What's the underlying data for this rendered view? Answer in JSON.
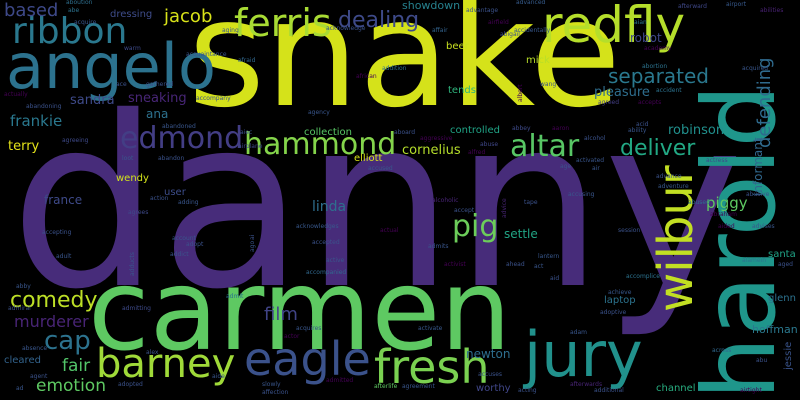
{
  "words": {
    "snake": {
      "text": "snake",
      "color": "#d5e21a"
    },
    "danny": {
      "text": "danny",
      "color": "#472c7a"
    },
    "carmen": {
      "text": "carmen",
      "color": "#5ec962"
    },
    "harold": {
      "text": "harold",
      "color": "#1f968b"
    },
    "angelo": {
      "text": "angelo",
      "color": "#2c728e"
    },
    "jury": {
      "text": "jury",
      "color": "#21918c"
    },
    "eagle": {
      "text": "eagle",
      "color": "#3b528b"
    },
    "fresh": {
      "text": "fresh",
      "color": "#7ad151"
    },
    "barney": {
      "text": "barney",
      "color": "#a0da39"
    },
    "wilbur": {
      "text": "wilbur",
      "color": "#c2df23"
    },
    "redfly": {
      "text": "redfly",
      "color": "#b5de2b"
    },
    "ferris": {
      "text": "ferris",
      "color": "#a8db34"
    },
    "ribbon": {
      "text": "ribbon",
      "color": "#2a788e"
    },
    "edmond": {
      "text": "edmond",
      "color": "#433e85"
    },
    "hammond": {
      "text": "hammond",
      "color": "#84d44b"
    },
    "altar": {
      "text": "altar",
      "color": "#58c765"
    },
    "pig": {
      "text": "pig",
      "color": "#6ccd5a"
    },
    "dealing": {
      "text": "dealing",
      "color": "#3e4a89"
    },
    "comedy": {
      "text": "comedy",
      "color": "#bddf26"
    },
    "cap": {
      "text": "cap",
      "color": "#2c728e"
    },
    "deliver": {
      "text": "deliver",
      "color": "#22a884"
    },
    "separated": {
      "text": "separated",
      "color": "#2a788e"
    },
    "defending": {
      "text": "defending",
      "color": "#2f6b8e"
    },
    "murderer": {
      "text": "murderer",
      "color": "#482475"
    },
    "film": {
      "text": "film",
      "color": "#414487"
    },
    "based": {
      "text": "based",
      "color": "#3e4989"
    },
    "jacob": {
      "text": "jacob",
      "color": "#d8e219"
    },
    "emotion": {
      "text": "emotion",
      "color": "#5ec962"
    },
    "fair": {
      "text": "fair",
      "color": "#52c569"
    },
    "frankie": {
      "text": "frankie",
      "color": "#2a788e"
    },
    "sandra": {
      "text": "sandra",
      "color": "#3e4a89"
    },
    "sneaking": {
      "text": "sneaking",
      "color": "#482677"
    },
    "pleasure": {
      "text": "pleasure",
      "color": "#2e6e8e"
    },
    "robinson": {
      "text": "robinson",
      "color": "#21908d"
    },
    "piggy": {
      "text": "piggy",
      "color": "#5ec962"
    },
    "cornelius": {
      "text": "cornelius",
      "color": "#b5de2b"
    },
    "linda": {
      "text": "linda",
      "color": "#2e6f8e"
    },
    "informant": {
      "text": "informant",
      "color": "#31688e"
    },
    "france": {
      "text": "france",
      "color": "#3e4a89"
    },
    "terry": {
      "text": "terry",
      "color": "#e5e419"
    },
    "newton": {
      "text": "newton",
      "color": "#2e6e8e"
    },
    "hoffman": {
      "text": "hoffman",
      "color": "#2a788e"
    },
    "robot": {
      "text": "robot",
      "color": "#3f4788"
    },
    "ana": {
      "text": "ana",
      "color": "#2d718e"
    },
    "settle": {
      "text": "settle",
      "color": "#21a585"
    },
    "showdown": {
      "text": "showdown",
      "color": "#26818e"
    },
    "collection": {
      "text": "collection",
      "color": "#58c765"
    },
    "controlled": {
      "text": "controlled",
      "color": "#20a486"
    },
    "mick": {
      "text": "mick",
      "color": "#b8de29"
    },
    "beer": {
      "text": "beer",
      "color": "#c8e020"
    },
    "tends": {
      "text": "tends",
      "color": "#2fb47c"
    },
    "wendy": {
      "text": "wendy",
      "color": "#d2e21b"
    },
    "elliott": {
      "text": "elliott",
      "color": "#d8e219"
    },
    "dressing": {
      "text": "dressing",
      "color": "#3e4c8a"
    },
    "santa": {
      "text": "santa",
      "color": "#20a386"
    },
    "glenn": {
      "text": "glenn",
      "color": "#2c728e"
    },
    "channel": {
      "text": "channel",
      "color": "#28ae80"
    },
    "jessie": {
      "text": "jessie",
      "color": "#3a548c"
    },
    "worthy": {
      "text": "worthy",
      "color": "#404688"
    },
    "cleared": {
      "text": "cleared",
      "color": "#33638d"
    },
    "laptop": {
      "text": "laptop",
      "color": "#2c738e"
    },
    "user": {
      "text": "user",
      "color": "#3d4d8a"
    },
    "aboution": {
      "text": "aboution",
      "color": "#2e6f8e"
    },
    "abe": {
      "text": "abe",
      "color": "#2c728e"
    },
    "advanced": {
      "text": "advanced",
      "color": "#365c8d"
    },
    "afterward": {
      "text": "afterward",
      "color": "#3f4889"
    },
    "airport": {
      "text": "airport",
      "color": "#37598c"
    },
    "abilities": {
      "text": "abilities",
      "color": "#482173"
    },
    "acknowledge": {
      "text": "acknowledge",
      "color": "#3b528b"
    },
    "accidentally": {
      "text": "accidentally",
      "color": "#38588c"
    },
    "abigail": {
      "text": "abigail",
      "color": "#3d4e8a"
    },
    "airfield": {
      "text": "airfield",
      "color": "#440154"
    },
    "aian": {
      "text": "aian",
      "color": "#2b758e"
    },
    "affair": {
      "text": "affair",
      "color": "#33638d"
    },
    "aging": {
      "text": "aging",
      "color": "#39568c"
    },
    "afraid": {
      "text": "afraid",
      "color": "#31688e"
    },
    "addition": {
      "text": "addition",
      "color": "#2d708e"
    },
    "african": {
      "text": "african",
      "color": "#440154"
    },
    "abortion": {
      "text": "abortion",
      "color": "#2c738e"
    },
    "acquired": {
      "text": "acquired",
      "color": "#39568c"
    },
    "accident": {
      "text": "accident",
      "color": "#2c728e"
    },
    "agreed": {
      "text": "agreed",
      "color": "#433e85"
    },
    "accepts": {
      "text": "accepts",
      "color": "#440154"
    },
    "acid": {
      "text": "acid",
      "color": "#3b528b"
    },
    "ability": {
      "text": "ability",
      "color": "#39568c"
    },
    "abuse": {
      "text": "abuse",
      "color": "#3f4788"
    },
    "actress": {
      "text": "actress",
      "color": "#3e4a89"
    },
    "advance": {
      "text": "advance",
      "color": "#3b528b"
    },
    "adventure": {
      "text": "adventure",
      "color": "#38588c"
    },
    "abusive": {
      "text": "abusive",
      "color": "#3b528b"
    },
    "abused": {
      "text": "abused",
      "color": "#2e6d8e"
    },
    "advises": {
      "text": "advises",
      "color": "#39568c"
    },
    "abraham": {
      "text": "abraham",
      "color": "#440154"
    },
    "aided": {
      "text": "aided",
      "color": "#440154"
    },
    "alamein": {
      "text": "alamein",
      "color": "#2c728e"
    },
    "aged": {
      "text": "aged",
      "color": "#3b528b"
    },
    "achieve": {
      "text": "achieve",
      "color": "#38588c"
    },
    "accomplice": {
      "text": "accomplice",
      "color": "#2c728e"
    },
    "adoptive": {
      "text": "adoptive",
      "color": "#3b528b"
    },
    "across": {
      "text": "across",
      "color": "#31688e"
    },
    "abu": {
      "text": "abu",
      "color": "#3b528b"
    },
    "airtight": {
      "text": "airtight",
      "color": "#440154"
    },
    "additional": {
      "text": "additional",
      "color": "#3b528b"
    },
    "afterwards": {
      "text": "afterwards",
      "color": "#482475"
    },
    "acting": {
      "text": "acting",
      "color": "#3b528b"
    },
    "accuses": {
      "text": "accuses",
      "color": "#3b528b"
    },
    "agreement": {
      "text": "agreement",
      "color": "#39568c"
    },
    "accepting": {
      "text": "accepting",
      "color": "#3b528b"
    },
    "agrees": {
      "text": "agrees",
      "color": "#3e4a89"
    },
    "adult": {
      "text": "adult",
      "color": "#39568c"
    },
    "abby": {
      "text": "abby",
      "color": "#39568c"
    },
    "admiral": {
      "text": "admiral",
      "color": "#3b528b"
    },
    "absence": {
      "text": "absence",
      "color": "#39568c"
    },
    "agent": {
      "text": "agent",
      "color": "#3b528b"
    },
    "ad": {
      "text": "ad",
      "color": "#39568c"
    },
    "adopted": {
      "text": "adopted",
      "color": "#3b528b"
    },
    "slowly": {
      "text": "slowly",
      "color": "#39568c"
    },
    "affection": {
      "text": "affection",
      "color": "#3b528b"
    },
    "admitted": {
      "text": "admitted",
      "color": "#440154"
    },
    "afterlife": {
      "text": "afterlife",
      "color": "#5ec962"
    },
    "adam": {
      "text": "adam",
      "color": "#39568c"
    },
    "activate": {
      "text": "activate",
      "color": "#38588c"
    },
    "actor": {
      "text": "actor",
      "color": "#440154"
    },
    "acquires": {
      "text": "acquires",
      "color": "#39568c"
    },
    "admitting": {
      "text": "admitting",
      "color": "#3e4a89"
    },
    "admit": {
      "text": "admit",
      "color": "#2c728e"
    },
    "aide": {
      "text": "aide",
      "color": "#39568c"
    },
    "alex": {
      "text": "alex",
      "color": "#3b528b"
    },
    "accompanied": {
      "text": "accompanied",
      "color": "#31688e"
    },
    "accepted": {
      "text": "accepted",
      "color": "#3b528b"
    },
    "active": {
      "text": "active",
      "color": "#39568c"
    },
    "acknowledges": {
      "text": "acknowledges",
      "color": "#38588c"
    },
    "actual": {
      "text": "actual",
      "color": "#440154"
    },
    "admits": {
      "text": "admits",
      "color": "#39568c"
    },
    "activist": {
      "text": "activist",
      "color": "#440154"
    },
    "ahead": {
      "text": "ahead",
      "color": "#3b528b"
    },
    "act": {
      "text": "act",
      "color": "#39568c"
    },
    "aid": {
      "text": "aid",
      "color": "#3b528b"
    },
    "lantern": {
      "text": "lantern",
      "color": "#38588c"
    },
    "advice": {
      "text": "advice",
      "color": "#482475"
    },
    "tape": {
      "text": "tape",
      "color": "#3b528b"
    },
    "accusing": {
      "text": "accusing",
      "color": "#39568c"
    },
    "session": {
      "text": "session",
      "color": "#3b528b"
    },
    "alcoholic": {
      "text": "alcoholic",
      "color": "#482475"
    },
    "accept": {
      "text": "accept",
      "color": "#3b528b"
    },
    "alcohol": {
      "text": "alcohol",
      "color": "#3b528b"
    },
    "activated": {
      "text": "activated",
      "color": "#39568c"
    },
    "age": {
      "text": "age",
      "color": "#3b528b"
    },
    "air": {
      "text": "air",
      "color": "#39568c"
    },
    "aaron": {
      "text": "aaron",
      "color": "#440154"
    },
    "abbey": {
      "text": "abbey",
      "color": "#3e4a89"
    },
    "aboard": {
      "text": "aboard",
      "color": "#3b528b"
    },
    "aggressive": {
      "text": "aggressive",
      "color": "#440154"
    },
    "alfred": {
      "text": "alfred",
      "color": "#440154"
    },
    "accused": {
      "text": "accused",
      "color": "#39568c"
    },
    "aiec": {
      "text": "aiec",
      "color": "#3b528b"
    },
    "airplane": {
      "text": "airplane",
      "color": "#3e4a89"
    },
    "loot": {
      "text": "loot",
      "color": "#39568c"
    },
    "abandon": {
      "text": "abandon",
      "color": "#3b528b"
    },
    "abandoned": {
      "text": "abandoned",
      "color": "#39568c"
    },
    "agency": {
      "text": "agency",
      "color": "#39568c"
    },
    "accompany": {
      "text": "accompany",
      "color": "#3b528b"
    },
    "action": {
      "text": "action",
      "color": "#3b528b"
    },
    "adding": {
      "text": "adding",
      "color": "#39568c"
    },
    "addict": {
      "text": "addict",
      "color": "#3b528b"
    },
    "account": {
      "text": "account",
      "color": "#39568c"
    },
    "adopt": {
      "text": "adopt",
      "color": "#3b528b"
    },
    "ago": {
      "text": "ago",
      "color": "#39568c"
    },
    "ai": {
      "text": "ai",
      "color": "#3b528b"
    },
    "adducts": {
      "text": "adducts",
      "color": "#39568c"
    },
    "abandoning": {
      "text": "abandoning",
      "color": "#3b528b"
    },
    "agreeing": {
      "text": "agreeing",
      "color": "#3e4a89"
    },
    "actually": {
      "text": "actually",
      "color": "#440154"
    },
    "acquaintance": {
      "text": "acquaintance",
      "color": "#39568c"
    },
    "gathered": {
      "text": "gathered",
      "color": "#3b528b"
    },
    "ace": {
      "text": "ace",
      "color": "#3b528b"
    },
    "warm": {
      "text": "warm",
      "color": "#3e4a89"
    },
    "acquire": {
      "text": "acquire",
      "color": "#39568c"
    },
    "advantage": {
      "text": "advantage",
      "color": "#3b528b"
    },
    "albert": {
      "text": "albert",
      "color": "#440154"
    },
    "wang": {
      "text": "wang",
      "color": "#3b528b"
    },
    "academy": {
      "text": "academy",
      "color": "#440154"
    }
  }
}
